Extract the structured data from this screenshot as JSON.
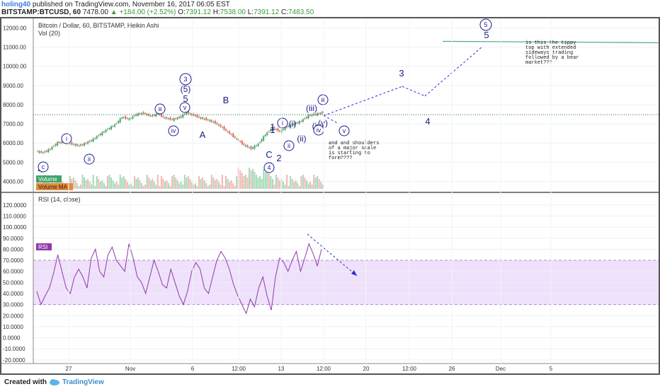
{
  "header": {
    "user": "holing40",
    "published": "published on TradingView.com, November 16, 2017 06:05 EST",
    "symbol": "BITSTAMP:BTCUSD, 60",
    "last": "7478.00",
    "change": "+184.00 (+2.52%)",
    "ohlc_o_label": "O:",
    "ohlc_o": "7391.12",
    "ohlc_h_label": "H:",
    "ohlc_h": "7538.00",
    "ohlc_l_label": "L:",
    "ohlc_l": "7391.12",
    "ohlc_c_label": "C:",
    "ohlc_c": "7483.50"
  },
  "footer": {
    "created_with": "Created with",
    "brand": "TradingView"
  },
  "colors": {
    "up": "#3fa56b",
    "down": "#e0695f",
    "rsi": "#8e3ba8",
    "rsi_band": "#efe1fb",
    "wave": "#1b1b8f",
    "projection": "#2a2ac8",
    "resistance": "#4aa88a"
  },
  "chart_data": [
    {
      "type": "line",
      "title": "Bitcoin / Dollar, 60, BITSTAMP, Heikin Ashi",
      "indicator_label": "Vol (20)",
      "legend": [
        "Volume",
        "Volume MA"
      ],
      "y_ticks": [
        "12000.00",
        "11000.00",
        "10000.00",
        "9000.00",
        "8000.00",
        "7000.00",
        "6000.00",
        "5000.00",
        "4000.00"
      ],
      "ylim": [
        3650,
        12200
      ],
      "x_ticks": [
        "27",
        "Nov",
        "6",
        "12:00",
        "13",
        "12:00",
        "20",
        "12:00",
        "26",
        "Dec",
        "5"
      ],
      "series": [
        {
          "values": [
            5580,
            5500,
            5700,
            6020,
            6050,
            5950,
            5860,
            6000,
            6200,
            6480,
            6730,
            6950,
            7350,
            7250,
            7500,
            7560,
            7400,
            7520,
            7300,
            7230,
            7330,
            7600,
            7450,
            7300,
            7200,
            7050,
            6800,
            6500,
            6200,
            5900,
            5710,
            5950,
            6450,
            6800,
            6600,
            6850,
            7000,
            7150,
            7430,
            7500,
            7590
          ]
        }
      ],
      "horizontal_levels": [
        7480,
        11300
      ],
      "wave_labels": [
        "1",
        "2",
        "3",
        "(5)",
        "5",
        "B",
        "A",
        "C",
        "2",
        "1",
        "(i)",
        "(ii)",
        "(iii)",
        "(iv)",
        "(v)",
        "3",
        "4",
        "5"
      ],
      "wave_circles": [
        "c",
        "i",
        "ii",
        "iii",
        "iv",
        "v",
        "3",
        "4",
        "i",
        "ii",
        "iii",
        "iv",
        "v",
        "5"
      ],
      "annotations": [
        "and and shoulders of a major scale is starting to form????",
        "is this the tippy top with extended sideways trading followed by a bear market???"
      ]
    },
    {
      "type": "line",
      "title": "RSI (14, close)",
      "legend": [
        "RSI"
      ],
      "y_ticks": [
        "120.0000",
        "110.0000",
        "100.0000",
        "90.0000",
        "80.0000",
        "70.0000",
        "60.0000",
        "50.0000",
        "40.0000",
        "30.0000",
        "20.0000",
        "10.0000",
        "0.0000",
        "-10.0000",
        "-20.0000"
      ],
      "ylim": [
        -22,
        125
      ],
      "band": [
        30,
        70
      ],
      "series": [
        {
          "name": "RSI",
          "values": [
            42,
            30,
            38,
            45,
            58,
            75,
            60,
            45,
            40,
            55,
            62,
            55,
            45,
            72,
            80,
            60,
            55,
            75,
            82,
            70,
            65,
            60,
            85,
            72,
            55,
            50,
            40,
            55,
            70,
            60,
            48,
            45,
            62,
            50,
            38,
            30,
            42,
            60,
            68,
            62,
            45,
            40,
            55,
            70,
            78,
            72,
            62,
            48,
            38,
            30,
            22,
            35,
            28,
            45,
            55,
            38,
            25,
            55,
            72,
            68,
            60,
            70,
            78,
            60,
            72,
            85,
            76,
            65,
            80
          ]
        }
      ]
    }
  ]
}
